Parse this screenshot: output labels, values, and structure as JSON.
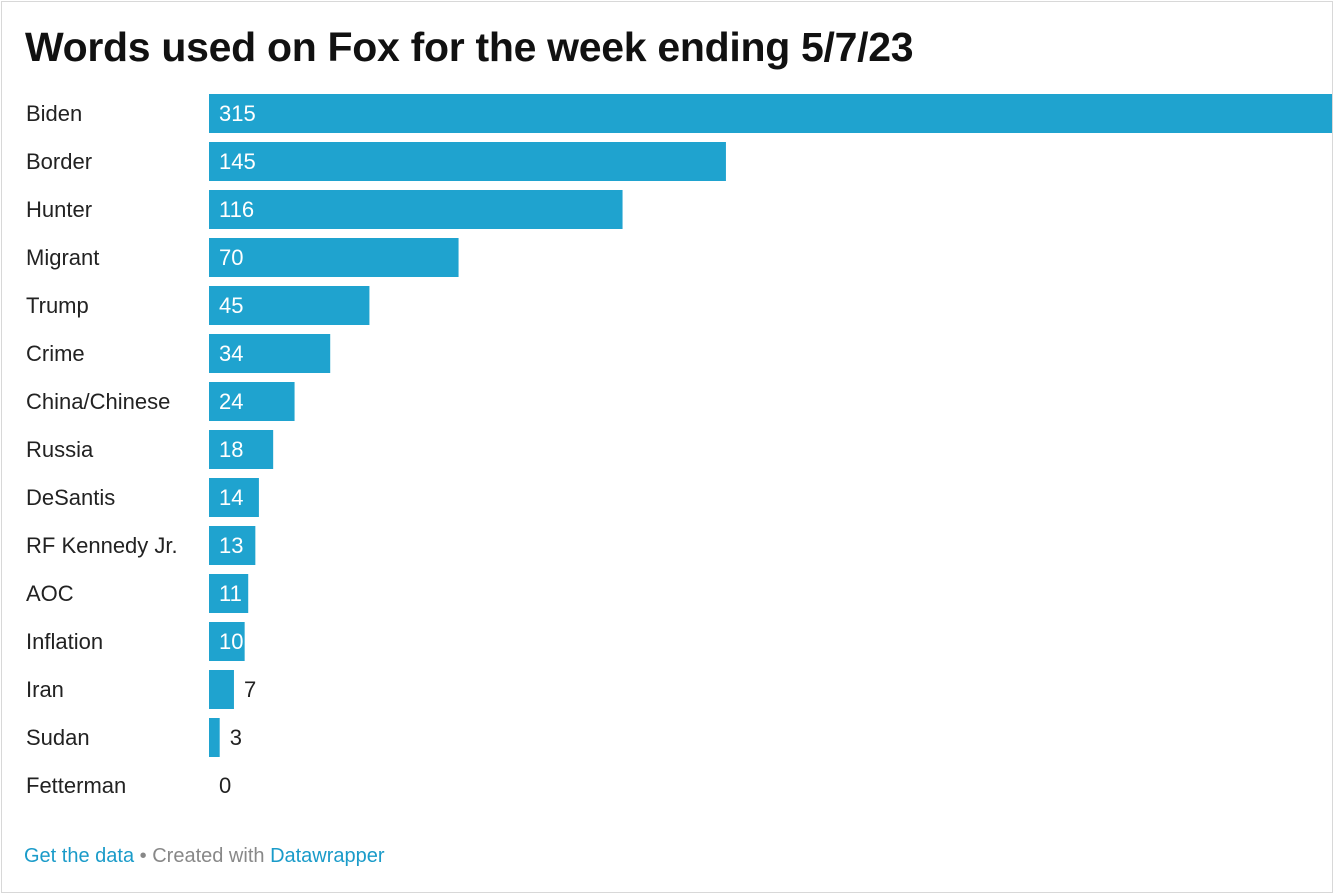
{
  "chart_data": {
    "type": "bar",
    "orientation": "horizontal",
    "title": "Words used on Fox for the week ending 5/7/23",
    "categories": [
      "Biden",
      "Border",
      "Hunter",
      "Migrant",
      "Trump",
      "Crime",
      "China/Chinese",
      "Russia",
      "DeSantis",
      "RF Kennedy Jr.",
      "AOC",
      "Inflation",
      "Iran",
      "Sudan",
      "Fetterman"
    ],
    "values": [
      315,
      145,
      116,
      70,
      45,
      34,
      24,
      18,
      14,
      13,
      11,
      10,
      7,
      3,
      0
    ],
    "xlim": [
      0,
      315
    ],
    "grid": false,
    "legend": "none",
    "bar_color": "#1fa3cf",
    "label_inside_color": "#ffffff",
    "label_outside_color": "#222222"
  },
  "footer": {
    "get_data": "Get the data",
    "separator": "•",
    "created_with": "Created with",
    "datawrapper": "Datawrapper"
  },
  "colors": {
    "title": "#111111",
    "category_label": "#222222",
    "link": "#1a9bc9",
    "footer_text": "#888888"
  }
}
